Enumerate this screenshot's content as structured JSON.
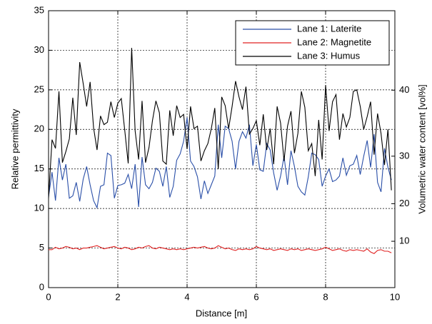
{
  "chart_data": {
    "type": "line",
    "xlabel": "Distance [m]",
    "ylabel": "Relative permittivity",
    "y2label": "Volumetric water content [vol%]",
    "x": [
      0,
      0.1,
      0.2,
      0.3,
      0.4,
      0.5,
      0.6,
      0.7,
      0.8,
      0.9,
      1,
      1.1,
      1.2,
      1.3,
      1.4,
      1.5,
      1.6,
      1.7,
      1.8,
      1.9,
      2,
      2.1,
      2.2,
      2.3,
      2.4,
      2.5,
      2.6,
      2.7,
      2.8,
      2.9,
      3,
      3.1,
      3.2,
      3.3,
      3.4,
      3.5,
      3.6,
      3.7,
      3.8,
      3.9,
      4,
      4.1,
      4.2,
      4.3,
      4.4,
      4.5,
      4.6,
      4.7,
      4.8,
      4.9,
      5,
      5.1,
      5.2,
      5.3,
      5.4,
      5.5,
      5.6,
      5.7,
      5.8,
      5.9,
      6,
      6.1,
      6.2,
      6.3,
      6.4,
      6.5,
      6.6,
      6.7,
      6.8,
      6.9,
      7,
      7.1,
      7.2,
      7.3,
      7.4,
      7.5,
      7.6,
      7.7,
      7.8,
      7.9,
      8,
      8.1,
      8.2,
      8.3,
      8.4,
      8.5,
      8.6,
      8.7,
      8.8,
      8.9,
      9,
      9.1,
      9.2,
      9.3,
      9.4,
      9.5,
      9.6,
      9.7,
      9.8,
      9.9
    ],
    "series": [
      {
        "name": "Lane 1: Laterite",
        "color": "#2a4fa8",
        "values": [
          11.5,
          14.6,
          11.0,
          16.4,
          13.6,
          15.6,
          11.3,
          11.6,
          13.3,
          10.9,
          13.7,
          15.3,
          13.0,
          11.0,
          10.1,
          12.8,
          13.0,
          17.0,
          16.7,
          11.3,
          12.9,
          13.0,
          13.2,
          14.3,
          12.5,
          15.6,
          10.2,
          16.5,
          13.0,
          12.5,
          13.3,
          15.1,
          14.7,
          12.8,
          15.3,
          11.4,
          12.8,
          16.1,
          16.9,
          18.5,
          21.5,
          16.0,
          15.3,
          14.0,
          11.2,
          13.5,
          11.9,
          13.0,
          14.1,
          20.6,
          16.4,
          20.4,
          20.1,
          18.5,
          15.0,
          18.5,
          19.7,
          18.9,
          20.6,
          15.4,
          18.1,
          14.9,
          14.7,
          18.2,
          17.4,
          14.5,
          12.3,
          14.1,
          16.6,
          13.0,
          17.3,
          15.3,
          12.8,
          12.1,
          11.7,
          14.0,
          17.0,
          16.8,
          16.2,
          12.8,
          14.1,
          15.0,
          13.4,
          13.6,
          14.1,
          16.4,
          14.2,
          15.4,
          15.6,
          16.7,
          14.3,
          16.6,
          18.6,
          15.2,
          19.4,
          13.3,
          12.1,
          17.6,
          15.2,
          13.6
        ]
      },
      {
        "name": "Lane 2: Magnetite",
        "color": "#e02020",
        "values": [
          4.8,
          4.8,
          5.1,
          4.9,
          5.0,
          5.2,
          5.1,
          4.9,
          5.0,
          4.8,
          5.0,
          5.0,
          5.1,
          5.2,
          5.3,
          5.1,
          4.9,
          5.0,
          5.1,
          5.2,
          5.0,
          4.9,
          5.1,
          5.0,
          4.8,
          4.9,
          5.1,
          5.0,
          5.2,
          5.3,
          5.0,
          4.9,
          5.1,
          5.0,
          4.9,
          4.8,
          4.9,
          4.8,
          4.9,
          4.8,
          4.9,
          5.0,
          5.1,
          5.0,
          5.1,
          5.2,
          5.0,
          4.9,
          5.0,
          5.3,
          5.1,
          4.9,
          5.0,
          4.8,
          4.7,
          4.9,
          4.8,
          4.9,
          4.8,
          4.9,
          5.2,
          5.0,
          4.9,
          4.8,
          4.9,
          4.7,
          4.8,
          4.9,
          4.8,
          4.7,
          4.9,
          4.8,
          4.9,
          4.7,
          4.8,
          4.9,
          4.8,
          4.7,
          4.8,
          4.9,
          5.1,
          4.9,
          4.7,
          4.8,
          4.9,
          4.7,
          4.6,
          4.8,
          4.7,
          4.8,
          4.7,
          4.6,
          4.9,
          4.5,
          4.3,
          4.7,
          4.8,
          4.6,
          4.6,
          4.4
        ]
      },
      {
        "name": "Lane 3: Humus",
        "color": "#000000",
        "values": [
          11.3,
          18.7,
          17.6,
          24.8,
          15.8,
          17.2,
          18.8,
          24.0,
          19.3,
          28.5,
          25.8,
          22.9,
          26.0,
          20.2,
          17.4,
          21.7,
          20.6,
          20.9,
          23.5,
          21.5,
          23.3,
          23.9,
          19.9,
          15.7,
          30.3,
          19.8,
          16.2,
          23.6,
          15.8,
          17.7,
          21.1,
          23.6,
          22.1,
          16.0,
          15.6,
          22.4,
          19.2,
          23.0,
          21.5,
          21.9,
          17.5,
          22.9,
          20.1,
          20.4,
          16.0,
          17.3,
          18.2,
          20.1,
          22.7,
          15.0,
          24.1,
          23.0,
          20.1,
          22.9,
          26.1,
          24.1,
          22.5,
          25.4,
          19.4,
          20.1,
          21.1,
          18.0,
          21.9,
          17.4,
          20.1,
          15.6,
          22.9,
          20.8,
          16.0,
          20.4,
          22.3,
          17.0,
          19.5,
          24.8,
          22.8,
          17.3,
          18.2,
          14.1,
          21.2,
          16.2,
          25.6,
          19.8,
          23.5,
          24.4,
          18.7,
          22.0,
          20.3,
          21.5,
          24.8,
          25.0,
          22.9,
          20.0,
          21.6,
          23.5,
          16.8,
          22.0,
          19.5,
          15.5,
          20.0,
          12.3
        ]
      }
    ],
    "xlim": [
      0,
      10
    ],
    "xticks": [
      0,
      2,
      4,
      6,
      8,
      10
    ],
    "ylim": [
      0,
      35
    ],
    "yticks": [
      0,
      5,
      10,
      15,
      20,
      25,
      30,
      35
    ],
    "y2scale": "topp",
    "y2ticks": [
      10,
      20,
      30,
      40
    ],
    "grid": true,
    "legend": "upper right"
  }
}
